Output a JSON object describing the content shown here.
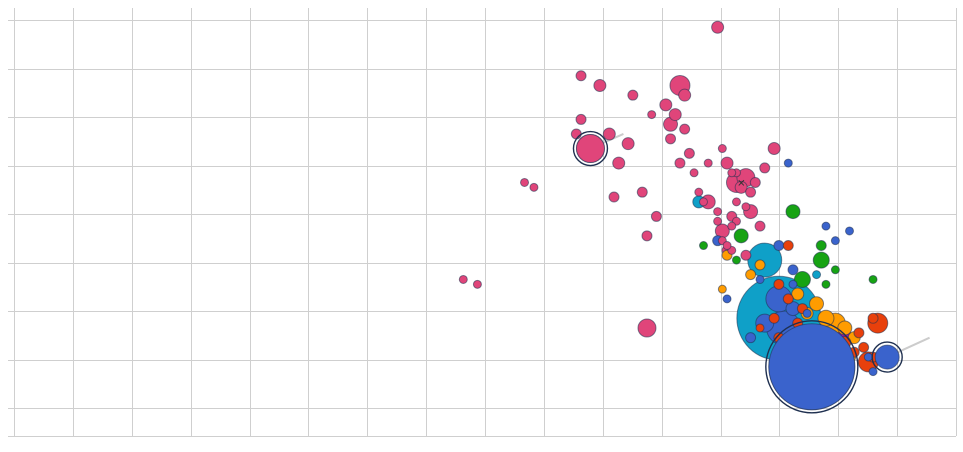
{
  "chart_data": {
    "type": "scatter",
    "title": "",
    "xlabel": "",
    "ylabel": "",
    "xlim": [
      0,
      16
    ],
    "ylim": [
      0,
      9
    ],
    "grid": true,
    "legend": "none",
    "colors": {
      "pink": "#e0457a",
      "cyan": "#0fa0c8",
      "blue": "#3a63cc",
      "green": "#17a314",
      "orange": "#ff9c00",
      "red": "#e8400c",
      "purple": "#9a0fb0"
    },
    "series": [
      {
        "color": "pink",
        "points": [
          [
            10.4,
            7.0,
            5
          ],
          [
            10.6,
            5.5,
            14
          ],
          [
            10.3,
            5.8,
            5
          ],
          [
            10.4,
            6.1,
            5
          ],
          [
            10.8,
            6.8,
            6
          ],
          [
            11.0,
            5.8,
            6
          ],
          [
            11.2,
            5.2,
            6
          ],
          [
            11.1,
            4.5,
            5
          ],
          [
            11.5,
            6.6,
            5
          ],
          [
            11.4,
            5.6,
            6
          ],
          [
            11.9,
            6.2,
            4
          ],
          [
            11.7,
            4.6,
            5
          ],
          [
            11.8,
            3.7,
            5
          ],
          [
            12.3,
            5.7,
            5
          ],
          [
            12.3,
            6.0,
            7
          ],
          [
            12.2,
            6.4,
            6
          ],
          [
            12.6,
            5.9,
            5
          ],
          [
            12.6,
            6.6,
            6
          ],
          [
            12.5,
            5.2,
            5
          ],
          [
            12.7,
            5.4,
            5
          ],
          [
            12.8,
            5.0,
            4
          ],
          [
            12.9,
            4.6,
            4
          ],
          [
            12.0,
            4.1,
            5
          ],
          [
            13.0,
            4.4,
            4
          ],
          [
            13.1,
            4.4,
            7
          ],
          [
            13.3,
            4.2,
            4
          ],
          [
            13.3,
            4.0,
            4
          ],
          [
            13.4,
            3.6,
            4
          ],
          [
            13.7,
            4.8,
            10
          ],
          [
            13.5,
            5.2,
            6
          ],
          [
            13.7,
            4.4,
            4
          ],
          [
            13.9,
            4.3,
            4
          ],
          [
            13.8,
            4.7,
            6
          ],
          [
            14.0,
            4.2,
            7
          ],
          [
            13.7,
            5.0,
            4
          ],
          [
            13.6,
            3.4,
            4
          ],
          [
            13.5,
            3.5,
            4
          ],
          [
            13.6,
            5.0,
            4
          ],
          [
            13.9,
            4.9,
            9
          ],
          [
            14.0,
            4.6,
            5
          ],
          [
            13.6,
            4.1,
            5
          ],
          [
            13.7,
            4.0,
            4
          ],
          [
            13.6,
            3.9,
            4
          ],
          [
            14.2,
            3.9,
            5
          ],
          [
            13.4,
            3.8,
            7
          ],
          [
            14.1,
            4.8,
            5
          ],
          [
            13.9,
            3.3,
            5
          ],
          [
            13.5,
            3.4,
            5
          ],
          [
            11.8,
            1.8,
            9
          ],
          [
            13.3,
            8.0,
            6
          ],
          [
            12.5,
            6.8,
            10
          ],
          [
            12.4,
            6.2,
            6
          ],
          [
            9.4,
            4.7,
            4
          ],
          [
            9.2,
            4.8,
            4
          ],
          [
            7.9,
            2.8,
            4
          ],
          [
            8.2,
            2.7,
            4
          ],
          [
            13.1,
            5.2,
            4
          ],
          [
            13.4,
            5.5,
            4
          ],
          [
            14.5,
            5.5,
            6
          ],
          [
            14.3,
            5.1,
            5
          ]
        ]
      },
      {
        "color": "cyan",
        "points": [
          [
            14.6,
            2.0,
            42
          ],
          [
            14.3,
            3.2,
            17
          ],
          [
            12.9,
            4.4,
            6
          ],
          [
            15.4,
            2.9,
            4
          ]
        ]
      },
      {
        "color": "blue",
        "points": [
          [
            15.3,
            1.0,
            43
          ],
          [
            14.7,
            1.8,
            17
          ],
          [
            14.6,
            2.4,
            13
          ],
          [
            14.9,
            2.2,
            7
          ],
          [
            14.3,
            1.9,
            9
          ],
          [
            14.0,
            1.6,
            5
          ],
          [
            14.8,
            5.2,
            4
          ],
          [
            15.8,
            3.6,
            4
          ],
          [
            15.6,
            3.9,
            4
          ],
          [
            16.1,
            3.8,
            4
          ],
          [
            14.6,
            3.5,
            5
          ],
          [
            13.3,
            3.6,
            5
          ],
          [
            14.9,
            3.0,
            5
          ],
          [
            13.5,
            2.4,
            4
          ],
          [
            16.5,
            1.2,
            4
          ],
          [
            16.6,
            0.9,
            4
          ],
          [
            14.9,
            2.7,
            4
          ],
          [
            15.2,
            2.1,
            4
          ],
          [
            14.8,
            1.6,
            5
          ],
          [
            14.2,
            2.8,
            4
          ]
        ]
      },
      {
        "color": "green",
        "points": [
          [
            15.1,
            2.8,
            8
          ],
          [
            15.5,
            3.2,
            8
          ],
          [
            14.9,
            4.2,
            7
          ],
          [
            13.8,
            3.7,
            7
          ],
          [
            15.6,
            2.7,
            4
          ],
          [
            15.8,
            3.0,
            4
          ],
          [
            16.6,
            2.8,
            4
          ],
          [
            15.5,
            3.5,
            5
          ],
          [
            15.9,
            1.4,
            4
          ],
          [
            13.0,
            3.5,
            4
          ],
          [
            13.7,
            3.2,
            4
          ]
        ]
      },
      {
        "color": "orange",
        "points": [
          [
            15.8,
            1.9,
            10
          ],
          [
            15.6,
            2.0,
            8
          ],
          [
            15.4,
            2.3,
            7
          ],
          [
            15.2,
            2.1,
            6
          ],
          [
            15.0,
            2.5,
            6
          ],
          [
            16.0,
            1.8,
            7
          ],
          [
            16.2,
            1.6,
            6
          ],
          [
            16.1,
            1.2,
            6
          ],
          [
            13.4,
            2.6,
            4
          ],
          [
            13.5,
            3.3,
            5
          ],
          [
            14.0,
            2.9,
            5
          ],
          [
            14.2,
            3.1,
            5
          ]
        ]
      },
      {
        "color": "red",
        "points": [
          [
            14.9,
            1.4,
            14
          ],
          [
            15.0,
            1.1,
            9
          ],
          [
            15.9,
            1.0,
            8
          ],
          [
            16.5,
            1.1,
            10
          ],
          [
            16.7,
            1.9,
            10
          ],
          [
            16.0,
            1.5,
            6
          ],
          [
            16.2,
            1.3,
            5
          ],
          [
            15.3,
            1.2,
            5
          ],
          [
            15.6,
            1.1,
            5
          ],
          [
            16.4,
            1.4,
            5
          ],
          [
            14.2,
            1.8,
            4
          ],
          [
            14.7,
            1.0,
            5
          ],
          [
            15.8,
            1.3,
            5
          ],
          [
            16.6,
            2.0,
            5
          ],
          [
            15.1,
            2.2,
            5
          ],
          [
            14.6,
            1.6,
            5
          ],
          [
            16.3,
            1.7,
            5
          ],
          [
            16.6,
            1.2,
            5
          ],
          [
            14.5,
            2.0,
            5
          ],
          [
            15.0,
            1.9,
            5
          ],
          [
            14.8,
            2.4,
            5
          ],
          [
            14.6,
            2.7,
            5
          ],
          [
            14.8,
            3.5,
            5
          ],
          [
            15.2,
            1.4,
            5
          ],
          [
            15.5,
            1.2,
            4
          ]
        ]
      },
      {
        "color": "purple",
        "points": [
          [
            15.8,
            1.6,
            16
          ],
          [
            15.4,
            1.7,
            7
          ],
          [
            15.5,
            1.4,
            6
          ]
        ]
      }
    ],
    "selected": [
      {
        "x": 10.6,
        "y": 5.5,
        "r": 14,
        "color": "pink",
        "trail_to": [
          11.3,
          5.8
        ]
      },
      {
        "x": 15.3,
        "y": 1.0,
        "r": 43,
        "color": "blue",
        "trail_to": [
          16.0,
          1.2
        ]
      },
      {
        "x": 16.9,
        "y": 1.2,
        "r": 12,
        "color": "blue",
        "trail_to": [
          17.8,
          1.6
        ]
      }
    ],
    "marker": {
      "text": "✕",
      "x": 13.8,
      "y": 4.8
    }
  }
}
